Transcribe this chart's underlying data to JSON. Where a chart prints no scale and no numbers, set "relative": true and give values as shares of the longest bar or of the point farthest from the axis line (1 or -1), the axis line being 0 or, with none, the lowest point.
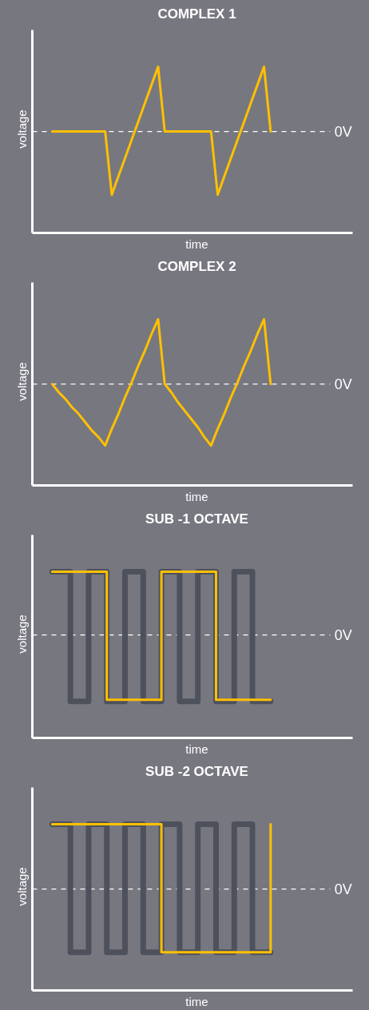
{
  "chart_data": [
    {
      "type": "line",
      "title": "COMPLEX 1",
      "xlabel": "time",
      "ylabel": "voltage",
      "relative": true,
      "line_style": "solid",
      "categories": [
        null,
        null,
        null,
        null,
        null,
        null,
        null,
        null,
        null,
        null,
        null,
        null,
        null,
        null,
        null,
        null,
        null,
        null,
        null,
        null,
        null,
        null,
        null,
        null,
        null,
        null,
        null,
        null,
        null,
        null,
        null,
        null,
        null,
        null
      ],
      "series": [
        {
          "color": "#ffc000",
          "values": [
            0.61,
            0.61,
            0.61,
            0.61,
            0.61,
            0.61,
            0.61,
            0.61,
            0.61,
            0.23,
            0.34,
            0.45,
            0.56,
            0.67,
            0.78,
            0.89,
            1,
            0.61,
            0.61,
            0.61,
            0.61,
            0.61,
            0.61,
            0.61,
            0.61,
            0.23,
            0.34,
            0.45,
            0.56,
            0.67,
            0.78,
            0.89,
            1,
            0.61
          ]
        }
      ],
      "ref_lines": [
        {
          "axis": "y",
          "value": 0.61,
          "label": "0V",
          "color": "#ffffff",
          "line_style": "dashed"
        }
      ]
    },
    {
      "type": "line",
      "title": "COMPLEX 2",
      "xlabel": "time",
      "ylabel": "voltage",
      "relative": true,
      "line_style": "solid",
      "categories": [
        null,
        null,
        null,
        null,
        null,
        null,
        null,
        null,
        null,
        null,
        null,
        null,
        null,
        null,
        null,
        null,
        null,
        null,
        null,
        null,
        null,
        null,
        null,
        null,
        null,
        null,
        null,
        null,
        null,
        null,
        null,
        null,
        null,
        null
      ],
      "series": [
        {
          "color": "#ffc000",
          "values": [
            0.61,
            0.56,
            0.52,
            0.47,
            0.43,
            0.38,
            0.33,
            0.29,
            0.24,
            0.34,
            0.43,
            0.53,
            0.62,
            0.72,
            0.81,
            0.91,
            1,
            0.61,
            0.56,
            0.5,
            0.45,
            0.4,
            0.35,
            0.29,
            0.24,
            0.34,
            0.43,
            0.53,
            0.62,
            0.72,
            0.81,
            0.91,
            1,
            0.61
          ]
        }
      ],
      "ref_lines": [
        {
          "axis": "y",
          "value": 0.61,
          "label": "0V",
          "color": "#ffffff",
          "line_style": "dashed"
        }
      ]
    },
    {
      "type": "step",
      "title": "SUB -1 OCTAVE",
      "xlabel": "time",
      "ylabel": "voltage",
      "relative": true,
      "line_style": "solid",
      "categories": [
        null,
        null,
        null,
        null,
        null,
        null,
        null,
        null,
        null,
        null,
        null,
        null,
        null
      ],
      "series": [
        {
          "color": "#4d515c",
          "values": [
            1,
            0.22,
            1,
            0.22,
            1,
            0.22,
            1,
            0.22,
            1,
            0.22,
            1,
            0.22,
            0.22
          ]
        },
        {
          "color": "#ffc000",
          "values": [
            1,
            1,
            1,
            0.23,
            0.23,
            0.23,
            1,
            1,
            1,
            0.23,
            0.23,
            0.23,
            0.23
          ]
        }
      ],
      "ref_lines": [
        {
          "axis": "y",
          "value": 0.62,
          "label": "0V",
          "color": "#ffffff",
          "line_style": "dashed"
        }
      ]
    },
    {
      "type": "step",
      "title": "SUB -2 OCTAVE",
      "xlabel": "time",
      "ylabel": "voltage",
      "relative": true,
      "line_style": "solid",
      "categories": [
        null,
        null,
        null,
        null,
        null,
        null,
        null,
        null,
        null,
        null,
        null,
        null,
        null
      ],
      "series": [
        {
          "color": "#4d515c",
          "values": [
            1,
            0.23,
            1,
            0.23,
            1,
            0.23,
            1,
            0.23,
            1,
            0.23,
            1,
            0.23,
            0.23
          ]
        },
        {
          "color": "#ffc000",
          "values": [
            1,
            1,
            1,
            1,
            1,
            1,
            0.23,
            0.23,
            0.23,
            0.23,
            0.23,
            0.23,
            1
          ]
        }
      ],
      "ref_lines": [
        {
          "axis": "y",
          "value": 0.61,
          "label": "0V",
          "color": "#ffffff",
          "line_style": "dashed"
        }
      ]
    }
  ]
}
